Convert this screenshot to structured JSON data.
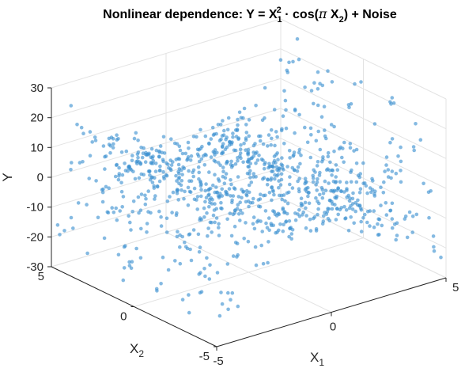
{
  "chart_data": {
    "type": "scatter",
    "plot_style": "3d",
    "title": {
      "prefix": "Nonlinear dependence: Y = X",
      "sup": "2",
      "sub1": "1",
      "mid": " · cos(",
      "pi": "π",
      "mid2": " X",
      "sub2": "2",
      "suffix": ") + Noise"
    },
    "xlabel": {
      "base": "X",
      "sub": "1"
    },
    "ylabel": {
      "base": "X",
      "sub": "2"
    },
    "zlabel": "Y",
    "xlim": [
      -5,
      5
    ],
    "ylim": [
      -5,
      5
    ],
    "zlim": [
      -30,
      30
    ],
    "x_ticks": [
      -5,
      0,
      5
    ],
    "y_ticks": [
      -5,
      0,
      5
    ],
    "z_ticks": [
      -30,
      -20,
      -10,
      0,
      10,
      20,
      30
    ],
    "grid": true,
    "marker_color": "#3a8fd1",
    "point_count": 1000,
    "generator": "x1, x2 ~ Uniform(-5, 5); Y = x1^2 * cos(pi * x2) + Normal(0, 2.5); Y clipped to [-30, 30]",
    "seed": 11
  }
}
